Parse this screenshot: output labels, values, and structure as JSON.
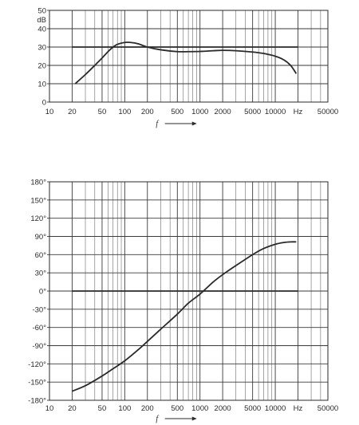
{
  "chart_data": [
    {
      "type": "line",
      "x_scale": "log",
      "xlim": [
        10,
        50000
      ],
      "ylim": [
        0,
        50
      ],
      "y_unit": "dB",
      "x_unit": "Hz",
      "xlabel": "f",
      "x_ticks": [
        "10",
        "20",
        "50",
        "100",
        "200",
        "500",
        "1000",
        "2000",
        "5000",
        "10000",
        "Hz",
        "50000"
      ],
      "y_ticks": [
        "0",
        "10",
        "20",
        "30",
        "40",
        "50"
      ],
      "reference_line": {
        "y": 30,
        "x_range": [
          20,
          20000
        ]
      },
      "series": [
        {
          "x": [
            22,
            30,
            40,
            50,
            60,
            70,
            80,
            100,
            120,
            150,
            200,
            300,
            500,
            700,
            1000,
            1500,
            2000,
            3000,
            5000,
            7000,
            10000,
            13000,
            16000,
            19000
          ],
          "y": [
            10,
            15,
            20,
            24,
            27.5,
            30,
            31.5,
            32.5,
            32.5,
            31.8,
            30,
            28.5,
            27.5,
            27.5,
            27.6,
            28,
            28.2,
            28,
            27.3,
            26.5,
            25,
            23,
            20,
            15.5
          ]
        }
      ]
    },
    {
      "type": "line",
      "x_scale": "log",
      "xlim": [
        10,
        50000
      ],
      "ylim": [
        -180,
        180
      ],
      "x_unit": "Hz",
      "xlabel": "f",
      "x_ticks": [
        "10",
        "20",
        "50",
        "100",
        "200",
        "500",
        "1000",
        "2000",
        "5000",
        "10000",
        "Hz",
        "50000"
      ],
      "y_ticks": [
        "-180°",
        "-150°",
        "-120°",
        "-90°",
        "-60°",
        "-30°",
        "0°",
        "30°",
        "60°",
        "90°",
        "120°",
        "150°",
        "180°"
      ],
      "reference_line": {
        "y": 0,
        "x_range": [
          20,
          20000
        ]
      },
      "series": [
        {
          "x": [
            20,
            30,
            50,
            70,
            100,
            150,
            200,
            300,
            500,
            700,
            1000,
            1500,
            2000,
            3000,
            5000,
            7000,
            10000,
            13000,
            16000,
            19000
          ],
          "y": [
            -165,
            -156,
            -140,
            -128,
            -115,
            -97,
            -83,
            -63,
            -38,
            -20,
            -5,
            15,
            27,
            42,
            60,
            70,
            77,
            80,
            81,
            81
          ]
        }
      ]
    }
  ]
}
